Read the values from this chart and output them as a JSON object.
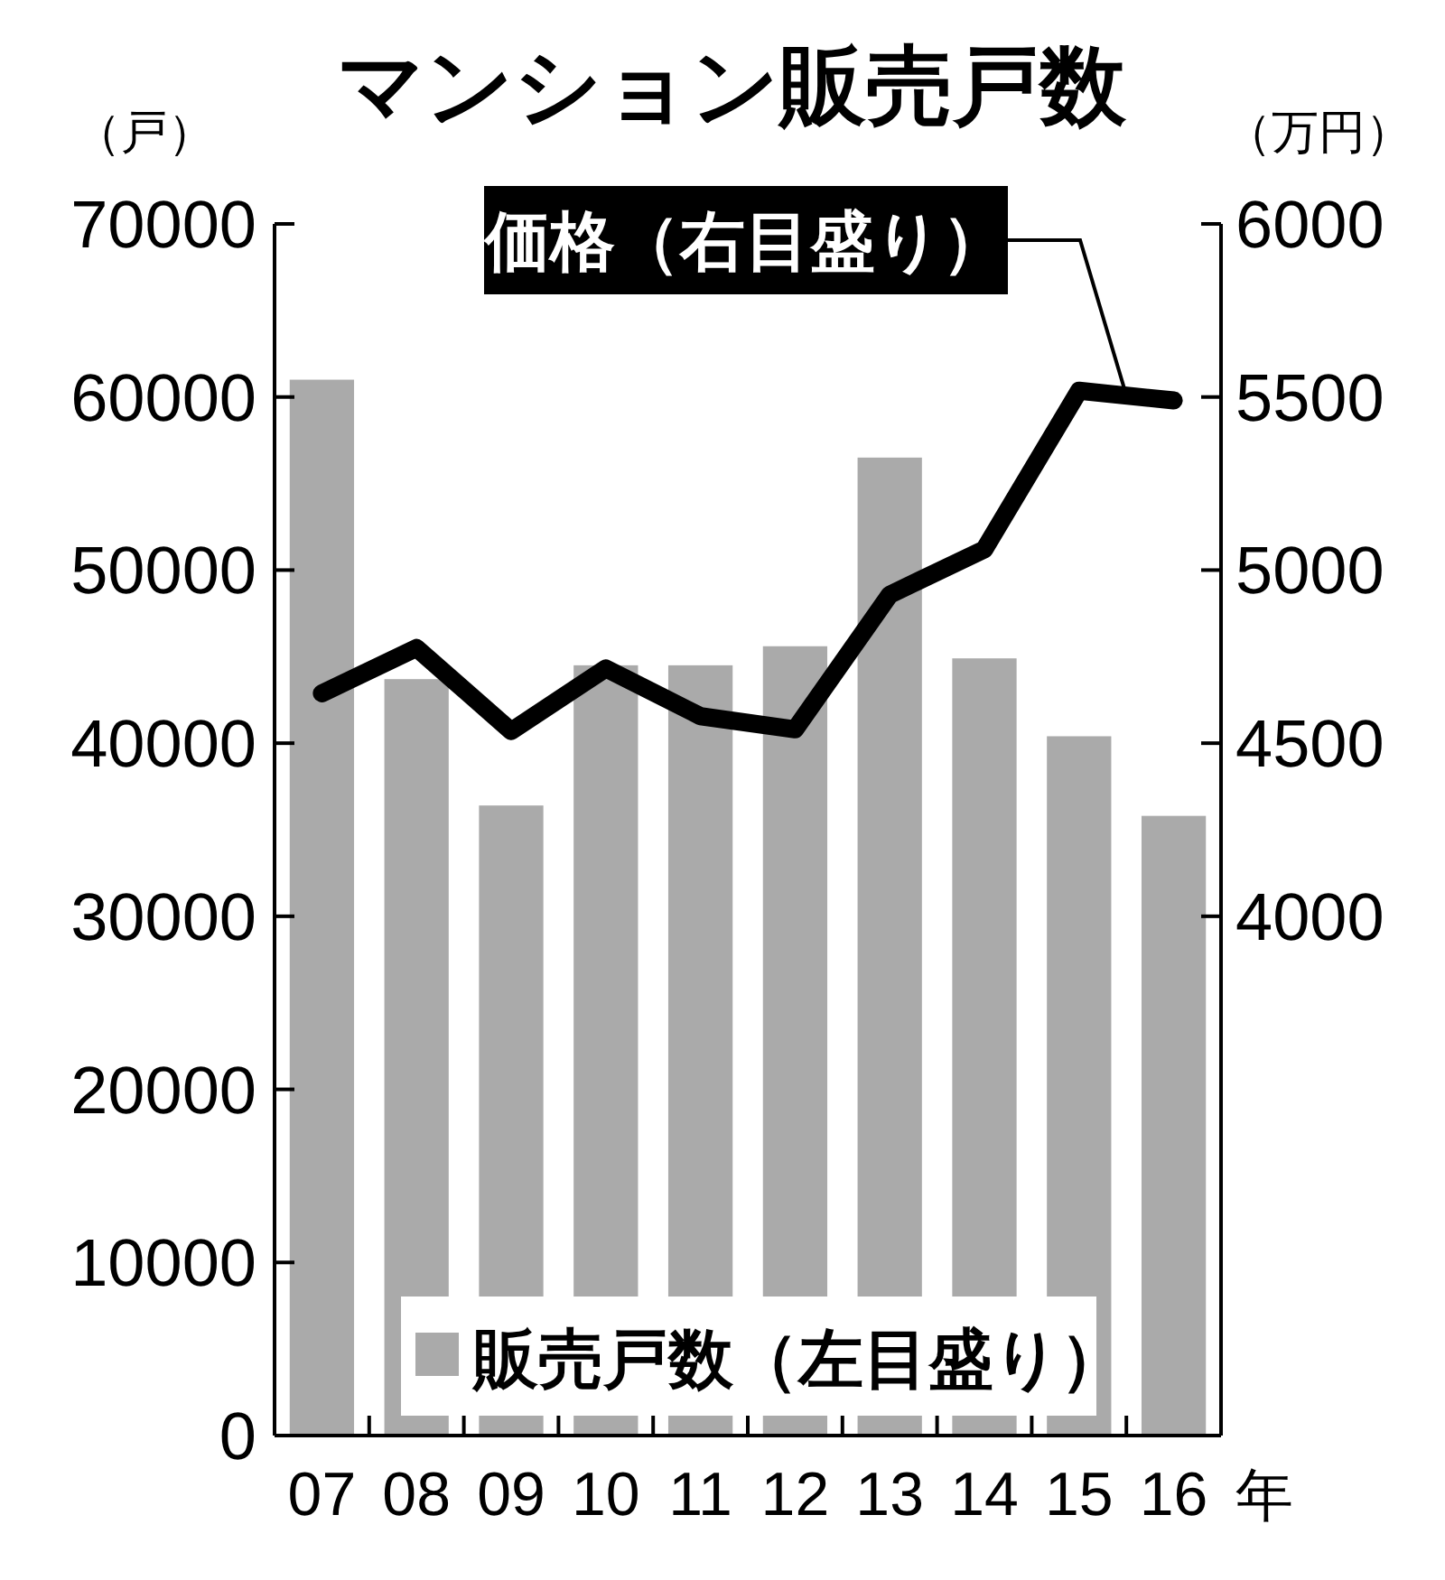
{
  "chart_data": {
    "type": "bar",
    "title": "マンション販売戸数",
    "xlabel": "年",
    "ylabel": "（戸）",
    "y2label": "（万円）",
    "categories": [
      "07",
      "08",
      "09",
      "10",
      "11",
      "12",
      "13",
      "14",
      "15",
      "16"
    ],
    "series": [
      {
        "name": "販売戸数（左目盛り）",
        "color": "#aaaaaa",
        "values": [
          61000,
          43700,
          36400,
          44500,
          44500,
          45600,
          56500,
          44900,
          40400,
          35800
        ]
      },
      {
        "name": "価格（右目盛り）",
        "type": "line",
        "axis": "y2",
        "color": "#000000",
        "values": [
          4644,
          4775,
          4535,
          4716,
          4578,
          4540,
          4929,
          5060,
          5518,
          5490
        ]
      }
    ],
    "ylim": [
      0,
      70000
    ],
    "yticks": [
      0,
      10000,
      20000,
      30000,
      40000,
      50000,
      60000,
      70000
    ],
    "y2lim": [
      2500,
      6000
    ],
    "y2ticks": [
      4000,
      4500,
      5000,
      5500,
      6000
    ],
    "marker": "none",
    "line_style": "solid"
  }
}
